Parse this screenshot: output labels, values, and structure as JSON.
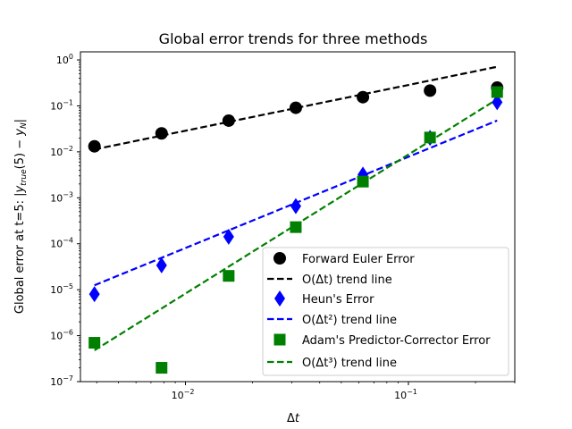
{
  "chart_data": {
    "type": "scatter",
    "title": "Global error trends for three methods",
    "xlabel": "Δt",
    "ylabel": "Global error at t=5: |y_true(5) − y_N|",
    "xscale": "log",
    "yscale": "log",
    "xlim": [
      0.00338,
      0.3
    ],
    "ylim": [
      1e-07,
      1.5
    ],
    "x_ticks": [
      {
        "value": 0.01,
        "label": "10",
        "exp": "−2"
      },
      {
        "value": 0.1,
        "label": "10",
        "exp": "−1"
      }
    ],
    "y_ticks": [
      {
        "value": 1e-07,
        "label": "10",
        "exp": "−7"
      },
      {
        "value": 1e-06,
        "label": "10",
        "exp": "−6"
      },
      {
        "value": 1e-05,
        "label": "10",
        "exp": "−5"
      },
      {
        "value": 0.0001,
        "label": "10",
        "exp": "−4"
      },
      {
        "value": 0.001,
        "label": "10",
        "exp": "−3"
      },
      {
        "value": 0.01,
        "label": "10",
        "exp": "−2"
      },
      {
        "value": 0.1,
        "label": "10",
        "exp": "−1"
      },
      {
        "value": 1,
        "label": "10",
        "exp": "0"
      }
    ],
    "grid": false,
    "legend_position": "lower-right",
    "x": [
      0.00390625,
      0.0078125,
      0.015625,
      0.03125,
      0.0625,
      0.125,
      0.25
    ],
    "series": [
      {
        "name": "Forward Euler Error",
        "kind": "marker",
        "marker": "circle",
        "color": "#000000",
        "values": [
          0.0132,
          0.0252,
          0.0478,
          0.091,
          0.155,
          0.215,
          0.25
        ]
      },
      {
        "name": "O(Δt) trend line",
        "kind": "line",
        "color": "#000000",
        "endpoints": [
          [
            0.00390625,
            0.0113
          ],
          [
            0.25,
            0.71
          ]
        ]
      },
      {
        "name": "Heun's Error",
        "kind": "marker",
        "marker": "diamond",
        "color": "#0000ff",
        "values": [
          8e-06,
          3.4e-05,
          0.000142,
          0.00066,
          0.0032,
          0.0202,
          0.12
        ]
      },
      {
        "name": "O(Δt²) trend line",
        "kind": "line",
        "color": "#0000ff",
        "endpoints": [
          [
            0.00390625,
            1.25e-05
          ],
          [
            0.25,
            0.048
          ]
        ]
      },
      {
        "name": "Adam's Predictor-Corrector Error",
        "kind": "marker",
        "marker": "square",
        "color": "#008000",
        "values": [
          7e-07,
          2e-07,
          2e-05,
          0.00023,
          0.00225,
          0.0205,
          0.2
        ]
      },
      {
        "name": "O(Δt³) trend line",
        "kind": "line",
        "color": "#008000",
        "endpoints": [
          [
            0.00390625,
            4.8e-07
          ],
          [
            0.25,
            0.14
          ]
        ]
      }
    ],
    "legend": [
      {
        "label": "Forward Euler Error"
      },
      {
        "label": "O(Δt) trend line"
      },
      {
        "label": "Heun's Error"
      },
      {
        "label": "O(Δt²) trend line"
      },
      {
        "label": "Adam's Predictor-Corrector Error"
      },
      {
        "label": "O(Δt³) trend line"
      }
    ]
  }
}
